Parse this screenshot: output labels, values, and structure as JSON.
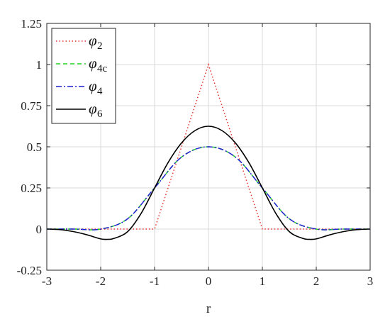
{
  "chart_data": {
    "type": "line",
    "xlabel": "r",
    "ylabel": "",
    "xlim": [
      -3,
      3
    ],
    "ylim": [
      -0.25,
      1.25
    ],
    "xticks": [
      -3,
      -2,
      -1,
      0,
      1,
      2,
      3
    ],
    "yticks": [
      -0.25,
      0,
      0.25,
      0.5,
      0.75,
      1,
      1.25
    ],
    "grid": true,
    "legend": "top-left",
    "series": [
      {
        "name": "φ2",
        "symbol": "φ",
        "sub": "2",
        "color": "#e8322d",
        "style": "dotted",
        "x": [
          -3,
          -1,
          0,
          1,
          3
        ],
        "y": [
          0,
          0,
          1,
          0,
          0
        ]
      },
      {
        "name": "φ4c",
        "symbol": "φ",
        "sub": "4c",
        "color": "#22d422",
        "style": "dashed",
        "x": [
          -3,
          -2.5,
          -2,
          -1.5,
          -1,
          -0.5,
          0,
          0.5,
          1,
          1.5,
          2,
          2.5,
          3
        ],
        "y": [
          0,
          0,
          0,
          0.0625,
          0.25,
          0.4375,
          0.5,
          0.4375,
          0.25,
          0.0625,
          0,
          0,
          0
        ]
      },
      {
        "name": "φ4",
        "symbol": "φ",
        "sub": "4",
        "color": "#1f1fd1",
        "style": "dashdot",
        "x": [
          -3,
          -2.5,
          -2,
          -1.5,
          -1,
          -0.5,
          0,
          0.5,
          1,
          1.5,
          2,
          2.5,
          3
        ],
        "y": [
          0,
          0,
          0,
          0.0625,
          0.25,
          0.4375,
          0.5,
          0.4375,
          0.25,
          0.0625,
          0,
          0,
          0
        ]
      },
      {
        "name": "φ6",
        "symbol": "φ",
        "sub": "6",
        "color": "#000000",
        "style": "solid",
        "x": [
          -3,
          -2.75,
          -2.5,
          -2.25,
          -2,
          -1.875,
          -1.75,
          -1.5,
          -1.25,
          -1,
          -0.75,
          -0.5,
          -0.25,
          0,
          0.25,
          0.5,
          0.75,
          1,
          1.25,
          1.5,
          1.75,
          1.875,
          2,
          2.25,
          2.5,
          2.75,
          3
        ],
        "y": [
          0,
          -0.0037,
          -0.0156,
          -0.0352,
          -0.0599,
          -0.0625,
          -0.0568,
          -0.0156,
          0.0952,
          0.25,
          0.4038,
          0.5234,
          0.5986,
          0.625,
          0.5986,
          0.5234,
          0.4038,
          0.25,
          0.0952,
          -0.0156,
          -0.0568,
          -0.0625,
          -0.0599,
          -0.0352,
          -0.0156,
          -0.0037,
          0
        ]
      }
    ]
  }
}
